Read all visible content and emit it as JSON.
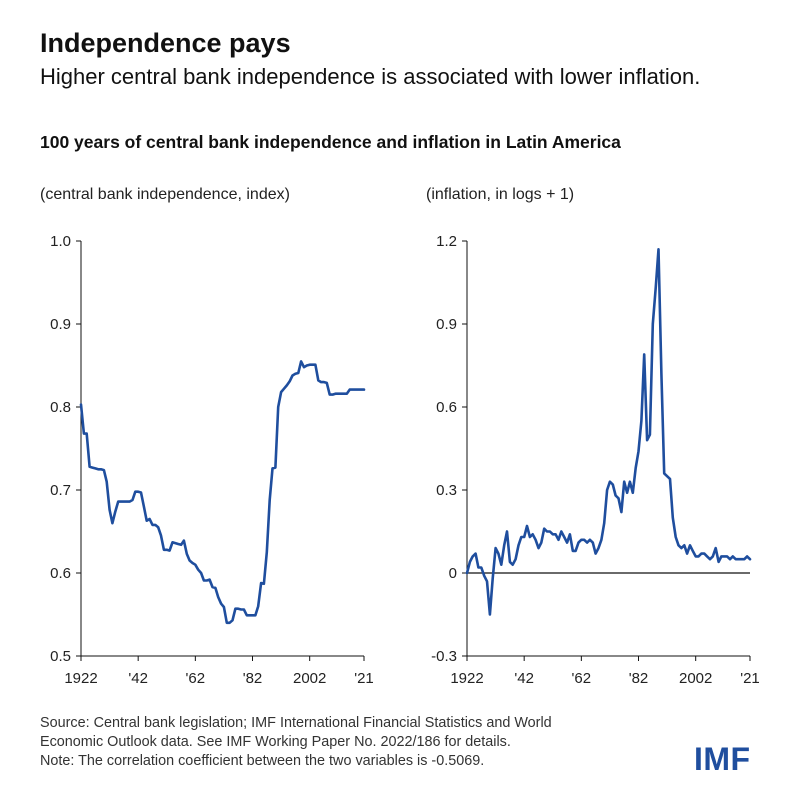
{
  "header": {
    "title": "Independence pays",
    "subtitle": "Higher central bank independence is associated with lower inflation.",
    "chart_heading": "100 years of central bank independence and inflation in Latin America"
  },
  "footer": {
    "source_line1": "Source: Central bank legislation; IMF International Financial Statistics and World",
    "source_line2": "Economic Outlook data. See IMF Working Paper No. 2022/186 for details.",
    "note": "Note: The correlation coefficient between the two variables is -0.5069."
  },
  "logo": {
    "text": "IMF"
  },
  "colors": {
    "line": "#1f4e9e",
    "axis": "#111111",
    "grid": "#cccccc"
  },
  "chart_data": [
    {
      "type": "line",
      "unit_label": "(central bank independence, index)",
      "xlim": [
        1922,
        2021
      ],
      "ylim": [
        0.5,
        1.0
      ],
      "yticks": [
        0.5,
        0.6,
        0.7,
        0.8,
        0.9,
        1.0
      ],
      "ytick_labels": [
        "0.5",
        "0.6",
        "0.7",
        "0.8",
        "0.9",
        "1.0"
      ],
      "xticks": [
        1922,
        1942,
        1962,
        1982,
        2002,
        2021
      ],
      "xtick_labels": [
        "1922",
        "'42",
        "'62",
        "'82",
        "2002",
        "'21"
      ],
      "grid": false,
      "series": [
        {
          "x": [
            1922,
            1923,
            1924,
            1925,
            1926,
            1927,
            1928,
            1929,
            1930,
            1931,
            1932,
            1933,
            1934,
            1935,
            1936,
            1937,
            1938,
            1939,
            1940,
            1941,
            1942,
            1943,
            1944,
            1945,
            1946,
            1947,
            1948,
            1949,
            1950,
            1951,
            1952,
            1953,
            1954,
            1955,
            1956,
            1957,
            1958,
            1959,
            1960,
            1961,
            1962,
            1963,
            1964,
            1965,
            1966,
            1967,
            1968,
            1969,
            1970,
            1971,
            1972,
            1973,
            1974,
            1975,
            1976,
            1977,
            1978,
            1979,
            1980,
            1981,
            1982,
            1983,
            1984,
            1985,
            1986,
            1987,
            1988,
            1989,
            1990,
            1991,
            1992,
            1993,
            1994,
            1995,
            1996,
            1997,
            1998,
            1999,
            2000,
            2001,
            2002,
            2003,
            2004,
            2005,
            2006,
            2007,
            2008,
            2009,
            2010,
            2011,
            2012,
            2013,
            2014,
            2015,
            2016,
            2017,
            2018,
            2019,
            2020,
            2021
          ],
          "values": [
            0.803,
            0.768,
            0.768,
            0.728,
            0.727,
            0.726,
            0.725,
            0.725,
            0.724,
            0.71,
            0.676,
            0.66,
            0.674,
            0.686,
            0.686,
            0.686,
            0.686,
            0.686,
            0.688,
            0.698,
            0.698,
            0.697,
            0.68,
            0.663,
            0.665,
            0.658,
            0.658,
            0.655,
            0.645,
            0.628,
            0.628,
            0.627,
            0.637,
            0.636,
            0.635,
            0.634,
            0.639,
            0.623,
            0.615,
            0.612,
            0.61,
            0.604,
            0.6,
            0.591,
            0.591,
            0.592,
            0.583,
            0.582,
            0.571,
            0.563,
            0.559,
            0.54,
            0.54,
            0.543,
            0.557,
            0.557,
            0.556,
            0.556,
            0.549,
            0.549,
            0.549,
            0.549,
            0.56,
            0.588,
            0.587,
            0.625,
            0.688,
            0.726,
            0.727,
            0.8,
            0.818,
            0.822,
            0.826,
            0.831,
            0.838,
            0.84,
            0.841,
            0.855,
            0.848,
            0.85,
            0.851,
            0.851,
            0.851,
            0.832,
            0.83,
            0.83,
            0.829,
            0.815,
            0.815,
            0.816,
            0.816,
            0.816,
            0.816,
            0.816,
            0.821,
            0.821,
            0.821,
            0.821,
            0.821,
            0.821
          ]
        }
      ]
    },
    {
      "type": "line",
      "unit_label": "(inflation, in logs + 1)",
      "xlim": [
        1922,
        2021
      ],
      "ylim": [
        -0.3,
        1.2
      ],
      "yticks": [
        -0.3,
        0,
        0.3,
        0.6,
        0.9,
        1.2
      ],
      "ytick_labels": [
        "-0.3",
        "0",
        "0.3",
        "0.6",
        "0.9",
        "1.2"
      ],
      "xticks": [
        1922,
        1942,
        1962,
        1982,
        2002,
        2021
      ],
      "xtick_labels": [
        "1922",
        "'42",
        "'62",
        "'82",
        "2002",
        "'21"
      ],
      "zero_line": true,
      "grid": false,
      "series": [
        {
          "x": [
            1922,
            1923,
            1924,
            1925,
            1926,
            1927,
            1928,
            1929,
            1930,
            1931,
            1932,
            1933,
            1934,
            1935,
            1936,
            1937,
            1938,
            1939,
            1940,
            1941,
            1942,
            1943,
            1944,
            1945,
            1946,
            1947,
            1948,
            1949,
            1950,
            1951,
            1952,
            1953,
            1954,
            1955,
            1956,
            1957,
            1958,
            1959,
            1960,
            1961,
            1962,
            1963,
            1964,
            1965,
            1966,
            1967,
            1968,
            1969,
            1970,
            1971,
            1972,
            1973,
            1974,
            1975,
            1976,
            1977,
            1978,
            1979,
            1980,
            1981,
            1982,
            1983,
            1984,
            1985,
            1986,
            1987,
            1988,
            1989,
            1990,
            1991,
            1992,
            1993,
            1994,
            1995,
            1996,
            1997,
            1998,
            1999,
            2000,
            2001,
            2002,
            2003,
            2004,
            2005,
            2006,
            2007,
            2008,
            2009,
            2010,
            2011,
            2012,
            2013,
            2014,
            2015,
            2016,
            2017,
            2018,
            2019,
            2020,
            2021
          ],
          "values": [
            0.0,
            0.04,
            0.06,
            0.07,
            0.02,
            0.02,
            -0.01,
            -0.03,
            -0.15,
            -0.02,
            0.09,
            0.07,
            0.03,
            0.1,
            0.15,
            0.04,
            0.03,
            0.05,
            0.1,
            0.13,
            0.13,
            0.17,
            0.13,
            0.14,
            0.12,
            0.09,
            0.11,
            0.16,
            0.15,
            0.15,
            0.14,
            0.14,
            0.12,
            0.15,
            0.13,
            0.11,
            0.14,
            0.08,
            0.08,
            0.11,
            0.12,
            0.12,
            0.11,
            0.12,
            0.11,
            0.07,
            0.09,
            0.12,
            0.18,
            0.3,
            0.33,
            0.32,
            0.28,
            0.27,
            0.22,
            0.33,
            0.29,
            0.33,
            0.29,
            0.38,
            0.44,
            0.55,
            0.79,
            0.48,
            0.5,
            0.9,
            1.03,
            1.17,
            0.72,
            0.36,
            0.35,
            0.34,
            0.2,
            0.13,
            0.1,
            0.09,
            0.1,
            0.07,
            0.1,
            0.08,
            0.06,
            0.06,
            0.07,
            0.07,
            0.06,
            0.05,
            0.06,
            0.09,
            0.04,
            0.06,
            0.06,
            0.06,
            0.05,
            0.06,
            0.05,
            0.05,
            0.05,
            0.05,
            0.06,
            0.05
          ]
        }
      ]
    }
  ]
}
